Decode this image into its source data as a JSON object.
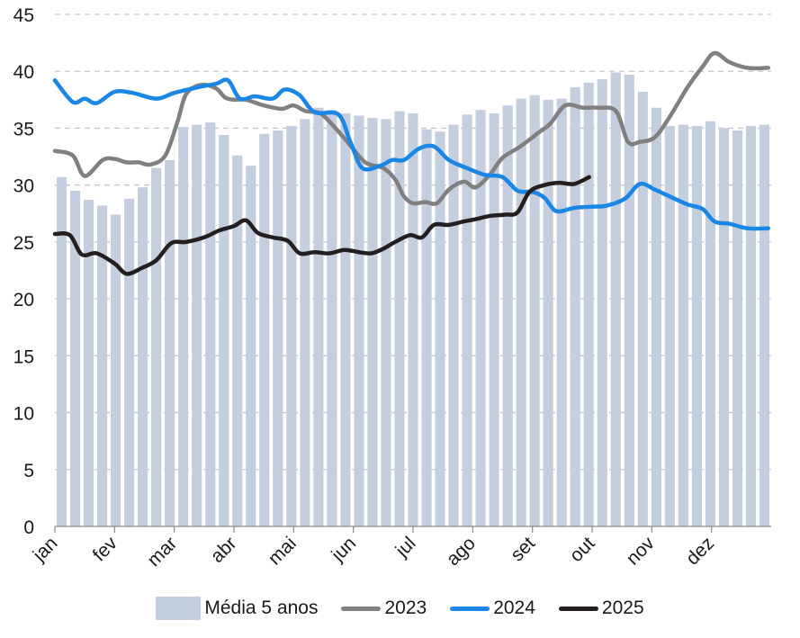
{
  "chart_data": {
    "type": "bar+line",
    "title": "",
    "xlabel": "",
    "ylabel": "",
    "ylim": [
      0,
      45
    ],
    "yticks": [
      0,
      5,
      10,
      15,
      20,
      25,
      30,
      35,
      40,
      45
    ],
    "grid": "horizontal dashed",
    "legend_position": "bottom",
    "months": [
      "jan",
      "fev",
      "mar",
      "abr",
      "mai",
      "jun",
      "jul",
      "ago",
      "set",
      "out",
      "nov",
      "dez"
    ],
    "bars": {
      "name": "Média 5 anos",
      "color": "#c4cedf",
      "values": [
        30.7,
        29.5,
        28.7,
        28.2,
        27.4,
        28.8,
        29.8,
        31.5,
        32.2,
        35.1,
        35.3,
        35.5,
        34.4,
        32.6,
        31.7,
        34.5,
        34.8,
        35.2,
        35.8,
        36.8,
        36.6,
        36.3,
        36.1,
        35.9,
        35.8,
        36.5,
        36.3,
        34.9,
        34.7,
        35.3,
        36.2,
        36.6,
        36.3,
        37.0,
        37.6,
        37.9,
        37.5,
        37.6,
        38.6,
        39.0,
        39.3,
        39.9,
        39.7,
        38.2,
        36.8,
        35.2,
        35.3,
        35.2,
        35.6,
        35.0,
        34.8,
        35.2,
        35.3
      ]
    },
    "series": [
      {
        "name": "2023",
        "color": "#808080",
        "points": [
          [
            0,
            33.0
          ],
          [
            0.3,
            32.6
          ],
          [
            0.5,
            30.8
          ],
          [
            0.8,
            32.2
          ],
          [
            1.0,
            32.3
          ],
          [
            1.2,
            32.0
          ],
          [
            1.4,
            32.0
          ],
          [
            1.6,
            31.8
          ],
          [
            1.85,
            32.6
          ],
          [
            2.05,
            35.5
          ],
          [
            2.2,
            38.0
          ],
          [
            2.45,
            38.8
          ],
          [
            2.7,
            38.5
          ],
          [
            2.85,
            37.7
          ],
          [
            3.0,
            37.5
          ],
          [
            3.2,
            37.5
          ],
          [
            3.5,
            37.0
          ],
          [
            3.8,
            36.7
          ],
          [
            4.0,
            37.0
          ],
          [
            4.2,
            36.5
          ],
          [
            4.45,
            36.3
          ],
          [
            4.7,
            35.0
          ],
          [
            4.9,
            33.8
          ],
          [
            5.2,
            32.0
          ],
          [
            5.5,
            31.5
          ],
          [
            5.7,
            30.5
          ],
          [
            5.85,
            29.0
          ],
          [
            6.0,
            28.4
          ],
          [
            6.2,
            28.5
          ],
          [
            6.4,
            28.4
          ],
          [
            6.6,
            29.6
          ],
          [
            6.85,
            30.3
          ],
          [
            7.05,
            29.8
          ],
          [
            7.3,
            31.0
          ],
          [
            7.5,
            32.4
          ],
          [
            7.8,
            33.4
          ],
          [
            8.1,
            34.6
          ],
          [
            8.3,
            35.4
          ],
          [
            8.55,
            37.0
          ],
          [
            8.85,
            36.8
          ],
          [
            9.1,
            36.8
          ],
          [
            9.4,
            36.5
          ],
          [
            9.6,
            33.8
          ],
          [
            9.8,
            33.8
          ],
          [
            10.05,
            34.2
          ],
          [
            10.3,
            36.0
          ],
          [
            10.6,
            38.6
          ],
          [
            10.85,
            40.4
          ],
          [
            11.05,
            41.6
          ],
          [
            11.3,
            40.8
          ],
          [
            11.6,
            40.3
          ],
          [
            11.95,
            40.3
          ]
        ]
      },
      {
        "name": "2024",
        "color": "#1a86e6",
        "points": [
          [
            0,
            39.2
          ],
          [
            0.3,
            37.3
          ],
          [
            0.5,
            37.6
          ],
          [
            0.7,
            37.2
          ],
          [
            1.0,
            38.2
          ],
          [
            1.3,
            38.1
          ],
          [
            1.7,
            37.6
          ],
          [
            2.0,
            38.1
          ],
          [
            2.4,
            38.6
          ],
          [
            2.7,
            38.9
          ],
          [
            2.9,
            39.2
          ],
          [
            3.1,
            37.6
          ],
          [
            3.35,
            37.8
          ],
          [
            3.65,
            37.6
          ],
          [
            3.85,
            38.4
          ],
          [
            4.1,
            37.9
          ],
          [
            4.35,
            36.4
          ],
          [
            4.75,
            36.2
          ],
          [
            4.95,
            33.8
          ],
          [
            5.15,
            31.5
          ],
          [
            5.45,
            31.7
          ],
          [
            5.65,
            32.2
          ],
          [
            5.85,
            32.2
          ],
          [
            6.1,
            33.2
          ],
          [
            6.35,
            33.4
          ],
          [
            6.6,
            32.2
          ],
          [
            6.9,
            31.5
          ],
          [
            7.2,
            30.9
          ],
          [
            7.5,
            30.7
          ],
          [
            7.75,
            29.5
          ],
          [
            8.0,
            29.4
          ],
          [
            8.2,
            28.9
          ],
          [
            8.4,
            27.7
          ],
          [
            8.7,
            28.0
          ],
          [
            9.0,
            28.1
          ],
          [
            9.25,
            28.2
          ],
          [
            9.55,
            28.8
          ],
          [
            9.8,
            30.1
          ],
          [
            10.05,
            29.6
          ],
          [
            10.3,
            29.0
          ],
          [
            10.6,
            28.3
          ],
          [
            10.85,
            27.9
          ],
          [
            11.05,
            26.8
          ],
          [
            11.3,
            26.6
          ],
          [
            11.6,
            26.2
          ],
          [
            11.95,
            26.2
          ]
        ]
      },
      {
        "name": "2025",
        "color": "#231f20",
        "points": [
          [
            0,
            25.7
          ],
          [
            0.25,
            25.6
          ],
          [
            0.45,
            23.9
          ],
          [
            0.7,
            24.0
          ],
          [
            1.0,
            23.1
          ],
          [
            1.2,
            22.2
          ],
          [
            1.45,
            22.7
          ],
          [
            1.7,
            23.4
          ],
          [
            1.95,
            24.9
          ],
          [
            2.2,
            25.0
          ],
          [
            2.5,
            25.4
          ],
          [
            2.75,
            26.0
          ],
          [
            3.0,
            26.4
          ],
          [
            3.2,
            26.9
          ],
          [
            3.4,
            25.8
          ],
          [
            3.65,
            25.4
          ],
          [
            3.9,
            25.1
          ],
          [
            4.1,
            24.0
          ],
          [
            4.35,
            24.1
          ],
          [
            4.6,
            24.0
          ],
          [
            4.85,
            24.3
          ],
          [
            5.1,
            24.1
          ],
          [
            5.3,
            24.0
          ],
          [
            5.5,
            24.4
          ],
          [
            5.7,
            25.0
          ],
          [
            5.95,
            25.6
          ],
          [
            6.15,
            25.4
          ],
          [
            6.35,
            26.5
          ],
          [
            6.6,
            26.5
          ],
          [
            6.85,
            26.8
          ],
          [
            7.05,
            27.0
          ],
          [
            7.3,
            27.3
          ],
          [
            7.55,
            27.4
          ],
          [
            7.75,
            27.6
          ],
          [
            7.95,
            29.4
          ],
          [
            8.2,
            30.0
          ],
          [
            8.45,
            30.2
          ],
          [
            8.7,
            30.1
          ],
          [
            8.95,
            30.7
          ]
        ]
      }
    ]
  }
}
